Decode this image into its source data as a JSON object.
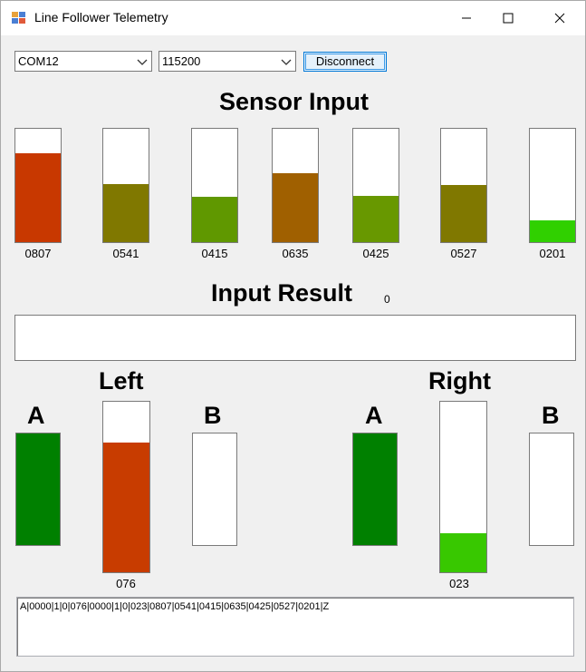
{
  "window": {
    "title": "Line Follower Telemetry"
  },
  "connection": {
    "port": "COM12",
    "baud": "115200",
    "disconnect_label": "Disconnect"
  },
  "sensor_section": {
    "title": "Sensor Input",
    "sensors": [
      {
        "label": "0807",
        "level": 0.78,
        "color": "#c83800"
      },
      {
        "label": "0541",
        "level": 0.51,
        "color": "#807800"
      },
      {
        "label": "0415",
        "level": 0.4,
        "color": "#609800"
      },
      {
        "label": "0635",
        "level": 0.61,
        "color": "#a06000"
      },
      {
        "label": "0425",
        "level": 0.41,
        "color": "#689800"
      },
      {
        "label": "0527",
        "level": 0.5,
        "color": "#807800"
      },
      {
        "label": "0201",
        "level": 0.19,
        "color": "#30d000"
      }
    ]
  },
  "result_section": {
    "title": "Input Result",
    "value": "0"
  },
  "left_motor": {
    "title": "Left",
    "a_label": "A",
    "b_label": "B",
    "a_color": "#008000",
    "speed_label": "076",
    "speed_level": 0.76,
    "speed_color": "#c83c00"
  },
  "right_motor": {
    "title": "Right",
    "a_label": "A",
    "b_label": "B",
    "a_color": "#008000",
    "speed_label": "023",
    "speed_level": 0.23,
    "speed_color": "#38c800"
  },
  "log": {
    "text": "A|0000|1|0|076|0000|1|0|023|0807|0541|0415|0635|0425|0527|0201|Z"
  },
  "icons": [
    "app-icon",
    "minimize-icon",
    "maximize-icon",
    "close-icon",
    "chevron-down-icon"
  ]
}
